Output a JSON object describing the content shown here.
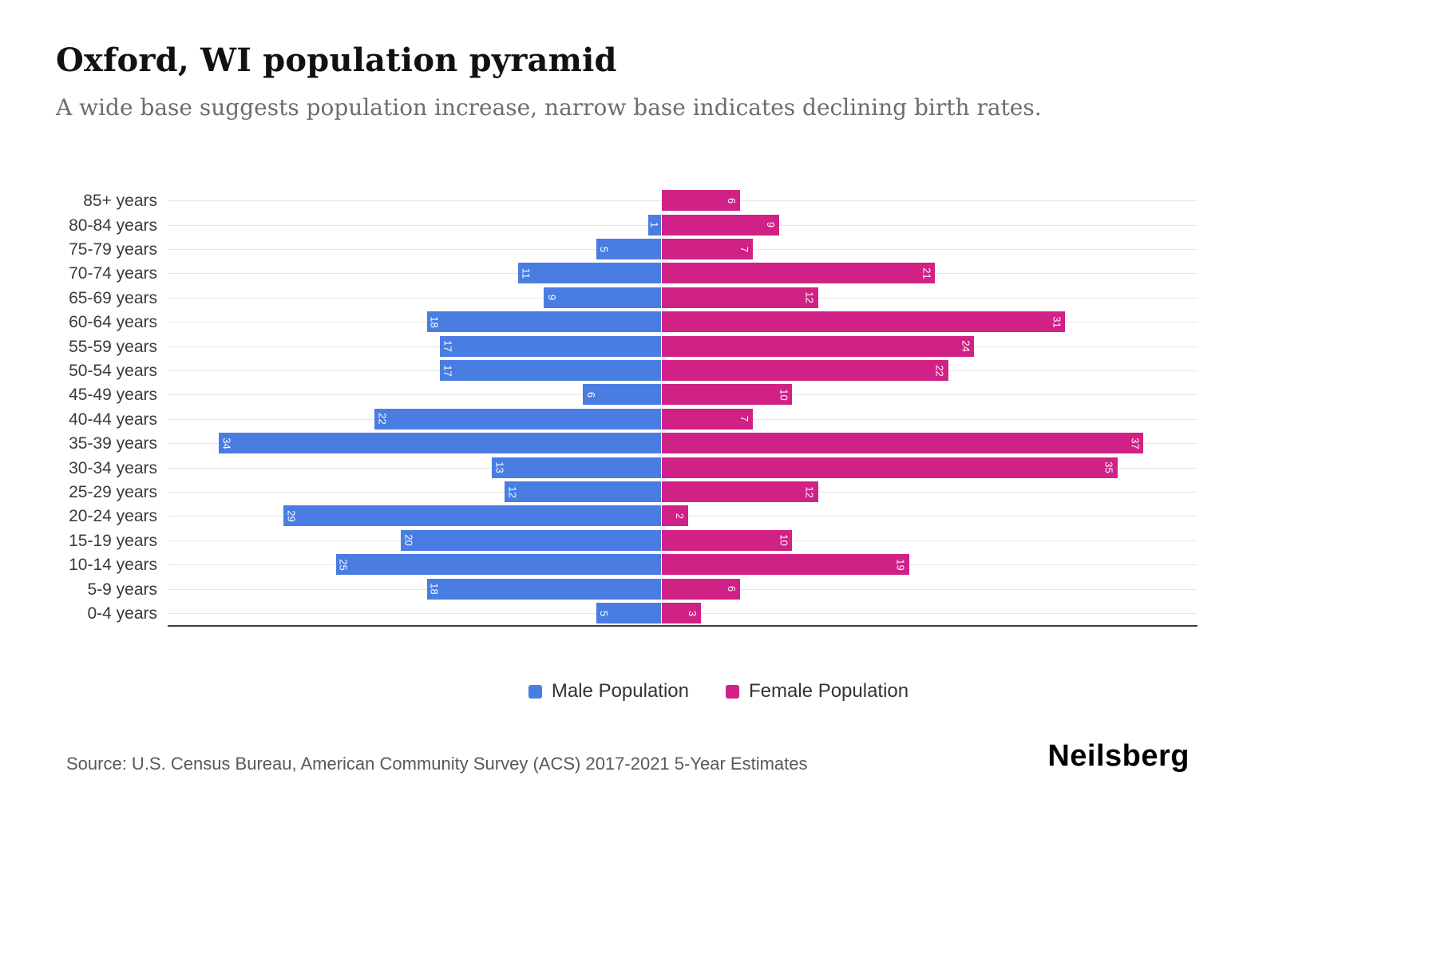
{
  "header": {
    "title": "Oxford, WI population pyramid",
    "subtitle": "A wide base suggests population increase, narrow base indicates declining birth rates."
  },
  "chart_data": {
    "type": "bar",
    "orientation": "horizontal-pyramid",
    "title": "Oxford, WI population pyramid",
    "categories": [
      "85+ years",
      "80-84 years",
      "75-79 years",
      "70-74 years",
      "65-69 years",
      "60-64 years",
      "55-59 years",
      "50-54 years",
      "45-49 years",
      "40-44 years",
      "35-39 years",
      "30-34 years",
      "25-29 years",
      "20-24 years",
      "15-19 years",
      "10-14 years",
      "5-9 years",
      "0-4 years"
    ],
    "series": [
      {
        "name": "Male Population",
        "color": "#4a7de2",
        "values": [
          0,
          1,
          5,
          11,
          9,
          18,
          17,
          17,
          6,
          22,
          34,
          13,
          12,
          29,
          20,
          25,
          18,
          5
        ]
      },
      {
        "name": "Female Population",
        "color": "#d02186",
        "values": [
          6,
          9,
          7,
          21,
          12,
          31,
          24,
          22,
          10,
          7,
          37,
          35,
          12,
          2,
          10,
          19,
          6,
          3
        ]
      }
    ],
    "value_label_color": "#ffffff",
    "grid": true,
    "legend_position": "bottom"
  },
  "legend": {
    "male": "Male Population",
    "female": "Female Population"
  },
  "footer": {
    "source": "Source: U.S. Census Bureau, American Community Survey (ACS) 2017-2021 5-Year Estimates",
    "logo": "Neilsberg"
  }
}
